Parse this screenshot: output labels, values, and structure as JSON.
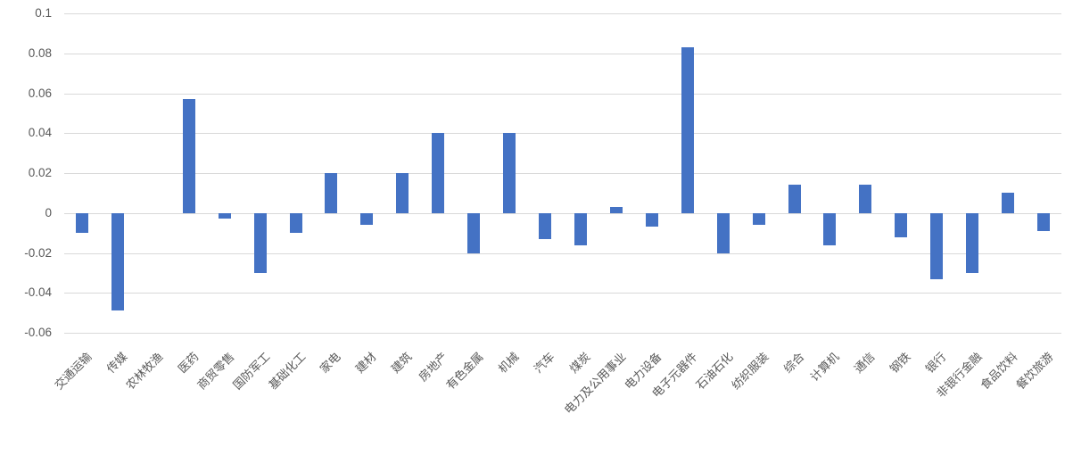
{
  "chart_data": {
    "type": "bar",
    "title": "",
    "xlabel": "",
    "ylabel": "",
    "legend": "none",
    "grid": true,
    "background_color": "#FFFFFF",
    "bar_color": "#4472C4",
    "gridline_color": "#D9D9D9",
    "axis_text_color": "#595959",
    "ylim": [
      -0.06,
      0.1
    ],
    "ytick_step": 0.02,
    "yticks": [
      {
        "value": 0.1,
        "label": "0.1"
      },
      {
        "value": 0.08,
        "label": "0.08"
      },
      {
        "value": 0.06,
        "label": "0.06"
      },
      {
        "value": 0.04,
        "label": "0.04"
      },
      {
        "value": 0.02,
        "label": "0.02"
      },
      {
        "value": 0,
        "label": "0"
      },
      {
        "value": -0.02,
        "label": "-0.02"
      },
      {
        "value": -0.04,
        "label": "-0.04"
      },
      {
        "value": -0.06,
        "label": "-0.06"
      }
    ],
    "categories": [
      "交通运输",
      "传媒",
      "农林牧渔",
      "医药",
      "商贸零售",
      "国防军工",
      "基础化工",
      "家电",
      "建材",
      "建筑",
      "房地产",
      "有色金属",
      "机械",
      "汽车",
      "煤炭",
      "电力及公用事业",
      "电力设备",
      "电子元器件",
      "石油石化",
      "纺织服装",
      "综合",
      "计算机",
      "通信",
      "钢铁",
      "银行",
      "非银行金融",
      "食品饮料",
      "餐饮旅游"
    ],
    "values": [
      -0.01,
      -0.049,
      0.0,
      0.057,
      -0.003,
      -0.03,
      -0.01,
      0.02,
      -0.006,
      0.02,
      0.04,
      -0.02,
      0.04,
      -0.013,
      -0.016,
      0.003,
      -0.007,
      0.083,
      -0.02,
      -0.006,
      0.014,
      -0.016,
      0.014,
      -0.012,
      -0.033,
      -0.03,
      0.01,
      -0.009
    ]
  }
}
